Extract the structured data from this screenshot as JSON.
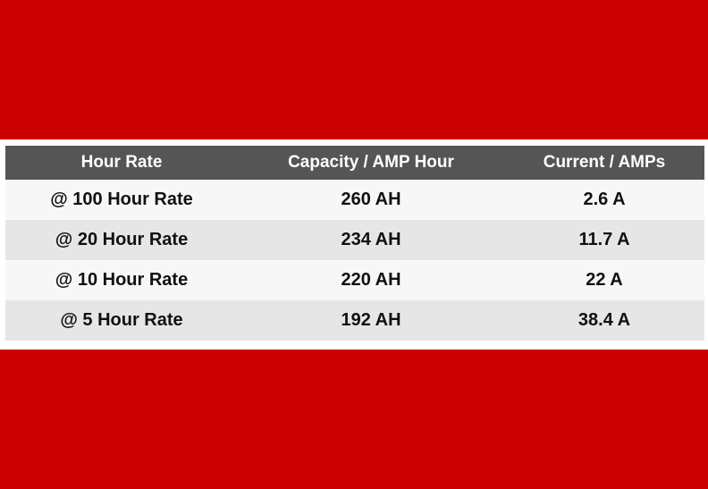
{
  "colors": {
    "background_band": "#cc0000",
    "header_background": "#555555",
    "header_text": "#ffffff",
    "row_light": "#f7f7f7",
    "row_dark": "#e6e6e6"
  },
  "table": {
    "headers": [
      "Hour Rate",
      "Capacity / AMP Hour",
      "Current / AMPs"
    ],
    "rows": [
      [
        "@ 100 Hour Rate",
        "260 AH",
        "2.6 A"
      ],
      [
        "@ 20 Hour Rate",
        "234 AH",
        "11.7 A"
      ],
      [
        "@ 10 Hour Rate",
        "220 AH",
        "22 A"
      ],
      [
        "@ 5 Hour Rate",
        "192 AH",
        "38.4 A"
      ]
    ]
  }
}
